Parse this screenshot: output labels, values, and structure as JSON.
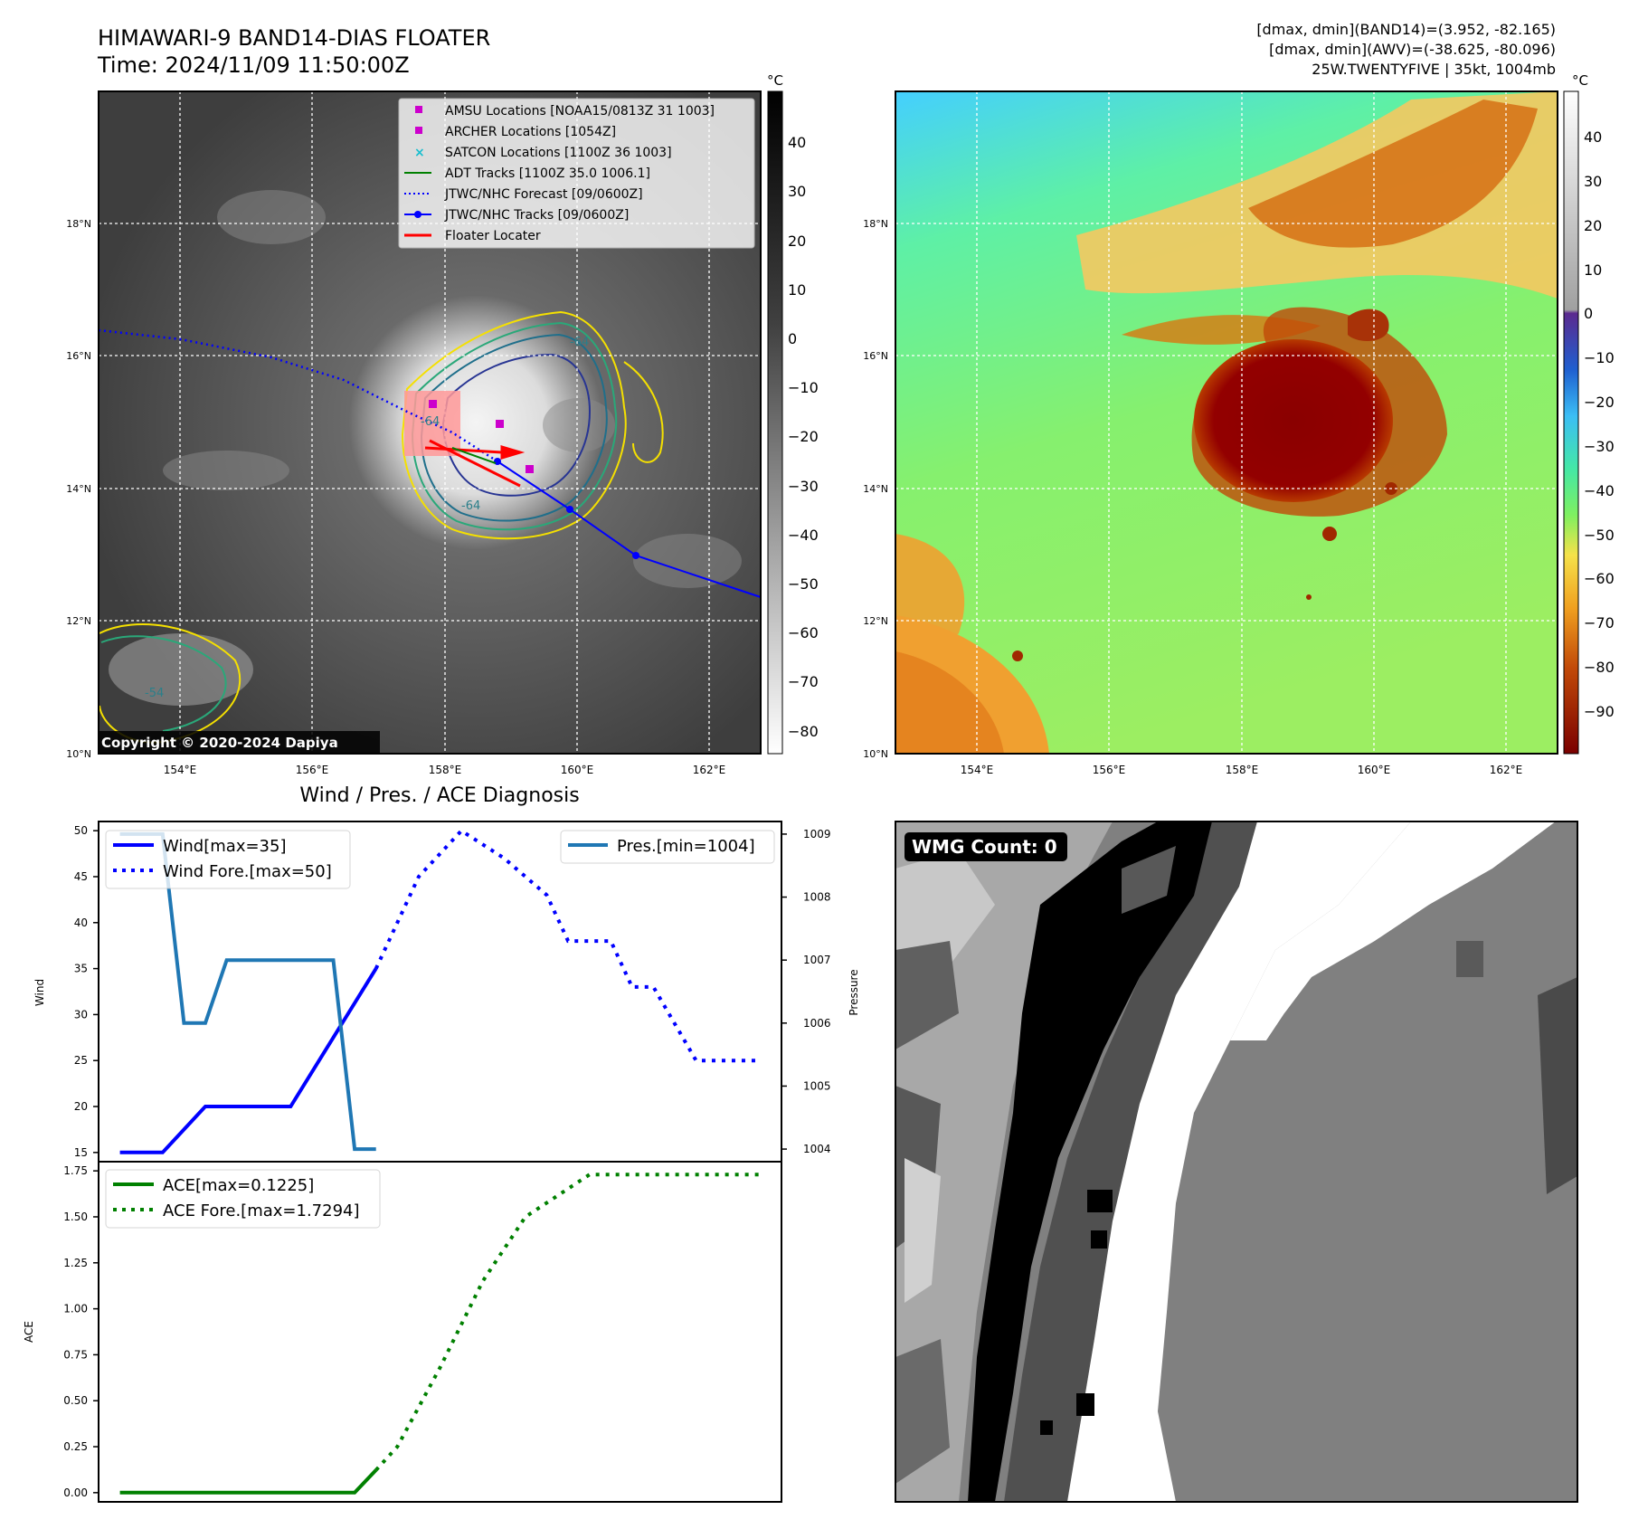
{
  "header": {
    "title_line1": "HIMAWARI-9 BAND14-DIAS FLOATER",
    "title_line2": "Time: 2024/11/09 11:50:00Z",
    "info_line1": "[dmax, dmin](BAND14)=(3.952, -82.165)",
    "info_line2": "[dmax, dmin](AWV)=(-38.625, -80.096)",
    "info_line3": "25W.TWENTYFIVE | 35kt, 1004mb"
  },
  "map": {
    "lat_labels": [
      "18°N",
      "16°N",
      "14°N",
      "12°N",
      "10°N"
    ],
    "lat_values": [
      18,
      16,
      14,
      12,
      10
    ],
    "lon_labels": [
      "154°E",
      "156°E",
      "158°E",
      "160°E",
      "162°E"
    ],
    "lon_values": [
      154,
      156,
      158,
      160,
      162
    ],
    "copyright": "Copyright © 2020-2024 Dapiya",
    "contour_labels": [
      "-64",
      "-64",
      "-54",
      "-64"
    ]
  },
  "legend_map": [
    {
      "label": "AMSU Locations [NOAA15/0813Z 31 1003]",
      "symbol": "square",
      "color": "#cc00cc"
    },
    {
      "label": "ARCHER Locations [1054Z]",
      "symbol": "square",
      "color": "#cc00cc"
    },
    {
      "label": "SATCON Locations [1100Z 36 1003]",
      "symbol": "x",
      "color": "#17becf"
    },
    {
      "label": "ADT Tracks [1100Z 35.0 1006.1]",
      "symbol": "line",
      "color": "#008000"
    },
    {
      "label": "JTWC/NHC Forecast [09/0600Z]",
      "symbol": "dotted",
      "color": "#0000ff"
    },
    {
      "label": "JTWC/NHC Tracks [09/0600Z]",
      "symbol": "line-dot",
      "color": "#0000ff"
    },
    {
      "label": "Floater Locater",
      "symbol": "line",
      "color": "#ff0000"
    }
  ],
  "colorbar_left": {
    "unit": "°C",
    "ticks": [
      "40",
      "30",
      "20",
      "10",
      "0",
      "−10",
      "−20",
      "−30",
      "−40",
      "−50",
      "−60",
      "−70",
      "−80"
    ]
  },
  "colorbar_right": {
    "unit": "°C",
    "ticks": [
      "40",
      "30",
      "20",
      "10",
      "0",
      "−10",
      "−20",
      "−30",
      "−40",
      "−50",
      "−60",
      "−70",
      "−80",
      "−90"
    ]
  },
  "wmg": {
    "label": "WMG Count: 0"
  },
  "colors": {
    "wind": "#0000ff",
    "pressure": "#1f77b4",
    "ace": "#008000",
    "floater": "#ff0000"
  },
  "chart_data": [
    {
      "type": "line",
      "title": "Wind / Pres. / ACE Diagnosis",
      "ylabel": "Wind",
      "y2label": "Pressure",
      "ylim": [
        14,
        51
      ],
      "y2lim": [
        1003.8,
        1009.2
      ],
      "yticks": [
        15,
        20,
        25,
        30,
        35,
        40,
        45,
        50
      ],
      "y2ticks": [
        1004,
        1005,
        1006,
        1007,
        1008,
        1009
      ],
      "xlim": [
        0,
        32
      ],
      "legend_left": [
        "Wind[max=35]",
        "Wind Fore.[max=50]"
      ],
      "legend_right": [
        "Pres.[min=1004]"
      ],
      "series": [
        {
          "name": "Wind",
          "axis": "left",
          "style": "solid",
          "x": [
            1,
            3,
            5,
            9,
            13
          ],
          "values": [
            15,
            15,
            20,
            20,
            35
          ]
        },
        {
          "name": "Wind Fore.",
          "axis": "left",
          "style": "dotted",
          "x": [
            13,
            15,
            17,
            19,
            21,
            22,
            24,
            25,
            26,
            28,
            31
          ],
          "values": [
            35,
            45,
            50,
            47,
            43,
            38,
            38,
            33,
            33,
            25,
            25
          ]
        },
        {
          "name": "Pres.",
          "axis": "right",
          "style": "solid",
          "x": [
            1,
            2,
            3,
            4,
            5,
            6,
            7,
            8,
            9,
            10,
            11,
            12,
            13
          ],
          "values": [
            1009,
            1009,
            1009,
            1006,
            1006,
            1007,
            1007,
            1007,
            1007,
            1007,
            1007,
            1004,
            1004
          ]
        }
      ]
    },
    {
      "type": "line",
      "ylabel": "ACE",
      "ylim": [
        -0.05,
        1.8
      ],
      "yticks": [
        "0.00",
        "0.25",
        "0.50",
        "0.75",
        "1.00",
        "1.25",
        "1.50",
        "1.75"
      ],
      "xlim": [
        0,
        32
      ],
      "legend": [
        "ACE[max=0.1225]",
        "ACE Fore.[max=1.7294]"
      ],
      "series": [
        {
          "name": "ACE",
          "style": "solid",
          "x": [
            1,
            12,
            13
          ],
          "values": [
            0,
            0,
            0.1225
          ]
        },
        {
          "name": "ACE Fore.",
          "style": "dotted",
          "x": [
            13,
            14,
            16,
            18,
            20,
            23,
            27,
            31
          ],
          "values": [
            0.1225,
            0.25,
            0.68,
            1.15,
            1.5,
            1.7294,
            1.7294,
            1.7294
          ]
        }
      ]
    }
  ]
}
